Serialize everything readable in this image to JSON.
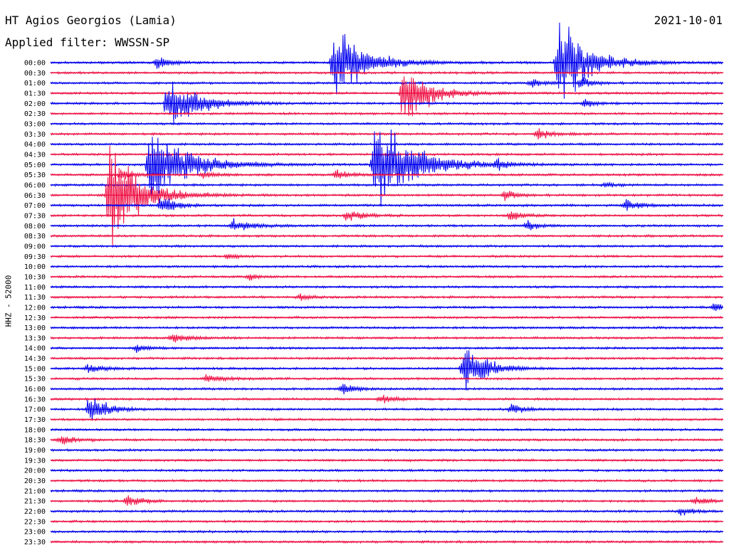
{
  "header": {
    "station": "HT Agios Georgios (Lamia)",
    "filter": "Applied filter: WWSSN-SP",
    "date": "2021-10-01",
    "channel_label": "HHZ - 52000"
  },
  "colors": {
    "blue": "#0000ee",
    "red": "#ee1144"
  },
  "chart_data": {
    "type": "helicorder",
    "title": "HT Agios Georgios (Lamia)",
    "subtitle": "Applied filter: WWSSN-SP",
    "date": "2021-10-01",
    "ylabel": "HHZ - 52000",
    "row_minutes": 30,
    "row_labels": [
      "00:00",
      "00:30",
      "01:00",
      "01:30",
      "02:00",
      "02:30",
      "03:00",
      "03:30",
      "04:00",
      "04:30",
      "05:00",
      "05:30",
      "06:00",
      "06:30",
      "07:00",
      "07:30",
      "08:00",
      "08:30",
      "09:00",
      "09:30",
      "10:00",
      "10:30",
      "11:00",
      "11:30",
      "12:00",
      "12:30",
      "13:00",
      "13:30",
      "14:00",
      "14:30",
      "15:00",
      "15:30",
      "16:00",
      "16:30",
      "17:00",
      "17:30",
      "18:00",
      "18:30",
      "19:00",
      "19:30",
      "20:00",
      "20:30",
      "21:00",
      "21:30",
      "22:00",
      "22:30",
      "23:00",
      "23:30"
    ],
    "trace_colors": [
      "blue",
      "red"
    ],
    "events": [
      {
        "row": 0,
        "minute": 12.5,
        "amplitude": 72,
        "duration": 3.5
      },
      {
        "row": 0,
        "minute": 22.5,
        "amplitude": 75,
        "duration": 3.5
      },
      {
        "row": 0,
        "minute": 4.6,
        "amplitude": 10,
        "duration": 1.5
      },
      {
        "row": 2,
        "minute": 21.3,
        "amplitude": 8,
        "duration": 1.2
      },
      {
        "row": 2,
        "minute": 23.5,
        "amplitude": 10,
        "duration": 1.5
      },
      {
        "row": 3,
        "minute": 15.6,
        "amplitude": 55,
        "duration": 3.0
      },
      {
        "row": 4,
        "minute": 5.1,
        "amplitude": 45,
        "duration": 3.5
      },
      {
        "row": 4,
        "minute": 23.7,
        "amplitude": 7,
        "duration": 1.2
      },
      {
        "row": 7,
        "minute": 21.6,
        "amplitude": 9,
        "duration": 1.5
      },
      {
        "row": 10,
        "minute": 4.3,
        "amplitude": 75,
        "duration": 4.0
      },
      {
        "row": 10,
        "minute": 14.3,
        "amplitude": 85,
        "duration": 4.5
      },
      {
        "row": 10,
        "minute": 19.8,
        "amplitude": 9,
        "duration": 1.2
      },
      {
        "row": 11,
        "minute": 3.0,
        "amplitude": 8,
        "duration": 1.5
      },
      {
        "row": 11,
        "minute": 6.6,
        "amplitude": 7,
        "duration": 1.5
      },
      {
        "row": 11,
        "minute": 12.6,
        "amplitude": 9,
        "duration": 1.5
      },
      {
        "row": 12,
        "minute": 24.6,
        "amplitude": 5,
        "duration": 1.0
      },
      {
        "row": 13,
        "minute": 2.5,
        "amplitude": 90,
        "duration": 3.5
      },
      {
        "row": 13,
        "minute": 20.1,
        "amplitude": 9,
        "duration": 1.5
      },
      {
        "row": 14,
        "minute": 4.8,
        "amplitude": 15,
        "duration": 2.0
      },
      {
        "row": 14,
        "minute": 25.5,
        "amplitude": 11,
        "duration": 1.6
      },
      {
        "row": 15,
        "minute": 13.1,
        "amplitude": 10,
        "duration": 2.0
      },
      {
        "row": 15,
        "minute": 20.4,
        "amplitude": 9,
        "duration": 1.5
      },
      {
        "row": 16,
        "minute": 8.0,
        "amplitude": 10,
        "duration": 2.5
      },
      {
        "row": 16,
        "minute": 21.1,
        "amplitude": 8,
        "duration": 1.6
      },
      {
        "row": 19,
        "minute": 7.8,
        "amplitude": 5,
        "duration": 1.2
      },
      {
        "row": 21,
        "minute": 8.7,
        "amplitude": 7,
        "duration": 1.0
      },
      {
        "row": 23,
        "minute": 11.0,
        "amplitude": 5,
        "duration": 1.2
      },
      {
        "row": 24,
        "minute": 29.5,
        "amplitude": 9,
        "duration": 1.6
      },
      {
        "row": 27,
        "minute": 5.3,
        "amplitude": 8,
        "duration": 2.0
      },
      {
        "row": 28,
        "minute": 3.7,
        "amplitude": 7,
        "duration": 1.5
      },
      {
        "row": 30,
        "minute": 18.3,
        "amplitude": 45,
        "duration": 2.5
      },
      {
        "row": 30,
        "minute": 1.5,
        "amplitude": 7,
        "duration": 2.0
      },
      {
        "row": 31,
        "minute": 6.8,
        "amplitude": 6,
        "duration": 2.5
      },
      {
        "row": 32,
        "minute": 12.9,
        "amplitude": 10,
        "duration": 1.5
      },
      {
        "row": 33,
        "minute": 14.6,
        "amplitude": 9,
        "duration": 1.6
      },
      {
        "row": 34,
        "minute": 1.6,
        "amplitude": 30,
        "duration": 2.0
      },
      {
        "row": 34,
        "minute": 20.4,
        "amplitude": 9,
        "duration": 1.5
      },
      {
        "row": 37,
        "minute": 0.3,
        "amplitude": 8,
        "duration": 2.0
      },
      {
        "row": 43,
        "minute": 3.3,
        "amplitude": 12,
        "duration": 1.5
      },
      {
        "row": 43,
        "minute": 28.6,
        "amplitude": 8,
        "duration": 1.5
      },
      {
        "row": 44,
        "minute": 28.0,
        "amplitude": 7,
        "duration": 1.6
      }
    ]
  }
}
